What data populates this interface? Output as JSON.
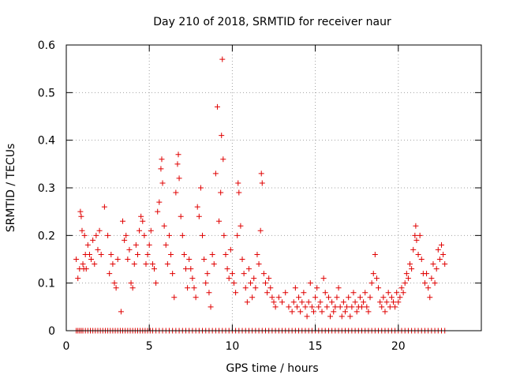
{
  "chart_data": {
    "type": "scatter",
    "title": "Day 210 of 2018, SRMTID for receiver naur",
    "xlabel": "GPS time / hours",
    "ylabel": "SRMTID / TECUs",
    "xlim": [
      0,
      25
    ],
    "ylim": [
      0,
      0.6
    ],
    "x_ticks": [
      0,
      5,
      10,
      15,
      20
    ],
    "x_tick_labels": [
      "0",
      "5",
      "10",
      "15",
      "20"
    ],
    "y_ticks": [
      0,
      0.1,
      0.2,
      0.3,
      0.4,
      0.5,
      0.6
    ],
    "y_tick_labels": [
      "0",
      "0.1",
      "0.2",
      "0.3",
      "0.4",
      "0.5",
      "0.6"
    ],
    "grid": true,
    "marker": "plus",
    "series": [
      {
        "name": "SRMTID",
        "color": "#e00000",
        "points": [
          [
            0.6,
            0.15
          ],
          [
            0.7,
            0.11
          ],
          [
            0.8,
            0.13
          ],
          [
            0.85,
            0.25
          ],
          [
            0.9,
            0.24
          ],
          [
            0.95,
            0.21
          ],
          [
            1.0,
            0.14
          ],
          [
            1.05,
            0.13
          ],
          [
            1.1,
            0.2
          ],
          [
            1.15,
            0.16
          ],
          [
            1.2,
            0.13
          ],
          [
            1.3,
            0.18
          ],
          [
            1.4,
            0.16
          ],
          [
            1.5,
            0.15
          ],
          [
            1.6,
            0.19
          ],
          [
            1.7,
            0.14
          ],
          [
            1.8,
            0.2
          ],
          [
            1.9,
            0.17
          ],
          [
            2.0,
            0.21
          ],
          [
            2.1,
            0.16
          ],
          [
            2.3,
            0.26
          ],
          [
            2.5,
            0.2
          ],
          [
            2.6,
            0.12
          ],
          [
            2.7,
            0.16
          ],
          [
            2.8,
            0.14
          ],
          [
            2.9,
            0.1
          ],
          [
            3.0,
            0.09
          ],
          [
            3.1,
            0.15
          ],
          [
            3.3,
            0.04
          ],
          [
            3.4,
            0.23
          ],
          [
            3.5,
            0.19
          ],
          [
            3.6,
            0.2
          ],
          [
            3.7,
            0.15
          ],
          [
            3.8,
            0.17
          ],
          [
            3.9,
            0.1
          ],
          [
            4.0,
            0.09
          ],
          [
            4.1,
            0.14
          ],
          [
            4.2,
            0.18
          ],
          [
            4.3,
            0.16
          ],
          [
            4.4,
            0.21
          ],
          [
            4.5,
            0.24
          ],
          [
            4.6,
            0.23
          ],
          [
            4.7,
            0.2
          ],
          [
            4.8,
            0.14
          ],
          [
            4.9,
            0.16
          ],
          [
            5.0,
            0.18
          ],
          [
            5.1,
            0.21
          ],
          [
            5.2,
            0.14
          ],
          [
            5.3,
            0.13
          ],
          [
            5.4,
            0.1
          ],
          [
            5.5,
            0.25
          ],
          [
            5.6,
            0.27
          ],
          [
            5.7,
            0.34
          ],
          [
            5.75,
            0.36
          ],
          [
            5.8,
            0.31
          ],
          [
            5.9,
            0.22
          ],
          [
            6.0,
            0.18
          ],
          [
            6.1,
            0.14
          ],
          [
            6.2,
            0.2
          ],
          [
            6.3,
            0.16
          ],
          [
            6.4,
            0.12
          ],
          [
            6.5,
            0.07
          ],
          [
            6.6,
            0.29
          ],
          [
            6.7,
            0.35
          ],
          [
            6.75,
            0.37
          ],
          [
            6.8,
            0.32
          ],
          [
            6.9,
            0.24
          ],
          [
            7.0,
            0.2
          ],
          [
            7.1,
            0.16
          ],
          [
            7.2,
            0.13
          ],
          [
            7.3,
            0.09
          ],
          [
            7.4,
            0.15
          ],
          [
            7.5,
            0.13
          ],
          [
            7.6,
            0.11
          ],
          [
            7.7,
            0.09
          ],
          [
            7.8,
            0.07
          ],
          [
            7.9,
            0.26
          ],
          [
            8.0,
            0.24
          ],
          [
            8.1,
            0.3
          ],
          [
            8.2,
            0.2
          ],
          [
            8.3,
            0.15
          ],
          [
            8.4,
            0.1
          ],
          [
            8.5,
            0.12
          ],
          [
            8.6,
            0.08
          ],
          [
            8.7,
            0.05
          ],
          [
            8.8,
            0.16
          ],
          [
            8.9,
            0.14
          ],
          [
            9.0,
            0.33
          ],
          [
            9.1,
            0.47
          ],
          [
            9.2,
            0.23
          ],
          [
            9.3,
            0.29
          ],
          [
            9.35,
            0.41
          ],
          [
            9.4,
            0.57
          ],
          [
            9.45,
            0.36
          ],
          [
            9.5,
            0.2
          ],
          [
            9.6,
            0.16
          ],
          [
            9.7,
            0.13
          ],
          [
            9.8,
            0.11
          ],
          [
            9.9,
            0.17
          ],
          [
            10.0,
            0.12
          ],
          [
            10.1,
            0.1
          ],
          [
            10.2,
            0.08
          ],
          [
            10.3,
            0.2
          ],
          [
            10.35,
            0.31
          ],
          [
            10.4,
            0.29
          ],
          [
            10.5,
            0.22
          ],
          [
            10.6,
            0.15
          ],
          [
            10.7,
            0.12
          ],
          [
            10.8,
            0.09
          ],
          [
            10.9,
            0.06
          ],
          [
            11.0,
            0.13
          ],
          [
            11.1,
            0.1
          ],
          [
            11.2,
            0.07
          ],
          [
            11.3,
            0.11
          ],
          [
            11.4,
            0.09
          ],
          [
            11.5,
            0.16
          ],
          [
            11.6,
            0.14
          ],
          [
            11.7,
            0.21
          ],
          [
            11.75,
            0.33
          ],
          [
            11.8,
            0.31
          ],
          [
            11.9,
            0.12
          ],
          [
            12.0,
            0.1
          ],
          [
            12.1,
            0.08
          ],
          [
            12.2,
            0.11
          ],
          [
            12.3,
            0.09
          ],
          [
            12.4,
            0.07
          ],
          [
            12.5,
            0.06
          ],
          [
            12.6,
            0.05
          ],
          [
            12.8,
            0.07
          ],
          [
            13.0,
            0.06
          ],
          [
            13.2,
            0.08
          ],
          [
            13.4,
            0.05
          ],
          [
            13.6,
            0.04
          ],
          [
            13.7,
            0.06
          ],
          [
            13.8,
            0.09
          ],
          [
            13.9,
            0.05
          ],
          [
            14.0,
            0.07
          ],
          [
            14.1,
            0.04
          ],
          [
            14.2,
            0.06
          ],
          [
            14.3,
            0.08
          ],
          [
            14.4,
            0.05
          ],
          [
            14.5,
            0.03
          ],
          [
            14.6,
            0.06
          ],
          [
            14.7,
            0.1
          ],
          [
            14.8,
            0.05
          ],
          [
            14.9,
            0.04
          ],
          [
            15.0,
            0.07
          ],
          [
            15.1,
            0.09
          ],
          [
            15.2,
            0.05
          ],
          [
            15.3,
            0.06
          ],
          [
            15.4,
            0.04
          ],
          [
            15.5,
            0.11
          ],
          [
            15.6,
            0.08
          ],
          [
            15.7,
            0.05
          ],
          [
            15.8,
            0.07
          ],
          [
            15.9,
            0.03
          ],
          [
            16.0,
            0.06
          ],
          [
            16.1,
            0.04
          ],
          [
            16.2,
            0.05
          ],
          [
            16.3,
            0.07
          ],
          [
            16.4,
            0.09
          ],
          [
            16.5,
            0.05
          ],
          [
            16.6,
            0.03
          ],
          [
            16.7,
            0.06
          ],
          [
            16.8,
            0.04
          ],
          [
            16.9,
            0.05
          ],
          [
            17.0,
            0.07
          ],
          [
            17.1,
            0.03
          ],
          [
            17.2,
            0.05
          ],
          [
            17.3,
            0.08
          ],
          [
            17.4,
            0.06
          ],
          [
            17.5,
            0.04
          ],
          [
            17.6,
            0.05
          ],
          [
            17.7,
            0.07
          ],
          [
            17.8,
            0.05
          ],
          [
            17.9,
            0.06
          ],
          [
            18.0,
            0.08
          ],
          [
            18.1,
            0.05
          ],
          [
            18.2,
            0.04
          ],
          [
            18.3,
            0.07
          ],
          [
            18.4,
            0.1
          ],
          [
            18.5,
            0.12
          ],
          [
            18.6,
            0.16
          ],
          [
            18.7,
            0.11
          ],
          [
            18.8,
            0.09
          ],
          [
            18.9,
            0.06
          ],
          [
            19.0,
            0.05
          ],
          [
            19.1,
            0.07
          ],
          [
            19.2,
            0.04
          ],
          [
            19.3,
            0.06
          ],
          [
            19.4,
            0.08
          ],
          [
            19.5,
            0.05
          ],
          [
            19.6,
            0.07
          ],
          [
            19.7,
            0.06
          ],
          [
            19.8,
            0.05
          ],
          [
            19.9,
            0.08
          ],
          [
            20.0,
            0.06
          ],
          [
            20.1,
            0.07
          ],
          [
            20.2,
            0.09
          ],
          [
            20.3,
            0.08
          ],
          [
            20.4,
            0.1
          ],
          [
            20.5,
            0.12
          ],
          [
            20.6,
            0.11
          ],
          [
            20.7,
            0.14
          ],
          [
            20.8,
            0.13
          ],
          [
            20.9,
            0.17
          ],
          [
            21.0,
            0.2
          ],
          [
            21.05,
            0.22
          ],
          [
            21.1,
            0.19
          ],
          [
            21.2,
            0.16
          ],
          [
            21.3,
            0.2
          ],
          [
            21.4,
            0.15
          ],
          [
            21.5,
            0.12
          ],
          [
            21.6,
            0.1
          ],
          [
            21.7,
            0.12
          ],
          [
            21.8,
            0.09
          ],
          [
            21.9,
            0.07
          ],
          [
            22.0,
            0.11
          ],
          [
            22.1,
            0.14
          ],
          [
            22.2,
            0.1
          ],
          [
            22.3,
            0.13
          ],
          [
            22.4,
            0.17
          ],
          [
            22.5,
            0.15
          ],
          [
            22.6,
            0.18
          ],
          [
            22.7,
            0.16
          ],
          [
            22.8,
            0.14
          ]
        ],
        "zero_x": [
          0.6,
          0.7,
          0.8,
          0.9,
          1.0,
          1.15,
          1.3,
          1.45,
          1.6,
          1.75,
          1.9,
          2.05,
          2.2,
          2.35,
          2.5,
          2.65,
          2.8,
          2.95,
          3.1,
          3.25,
          3.4,
          3.55,
          3.7,
          3.85,
          4.0,
          4.15,
          4.3,
          4.45,
          4.6,
          4.75,
          4.9,
          5.05,
          5.2,
          5.4,
          5.6,
          5.8,
          6.0,
          6.2,
          6.4,
          6.6,
          6.8,
          7.0,
          7.2,
          7.4,
          7.6,
          7.8,
          8.0,
          8.2,
          8.4,
          8.6,
          8.8,
          9.0,
          9.2,
          9.4,
          9.6,
          9.8,
          10.0,
          10.2,
          10.4,
          10.6,
          10.8,
          11.0,
          11.2,
          11.4,
          11.6,
          11.8,
          12.0,
          12.2,
          12.4,
          12.6,
          12.8,
          13.0,
          13.2,
          13.4,
          13.6,
          13.8,
          14.0,
          14.2,
          14.4,
          14.6,
          14.8,
          15.0,
          15.2,
          15.4,
          15.6,
          15.8,
          16.0,
          16.2,
          16.4,
          16.6,
          16.8,
          17.0,
          17.2,
          17.4,
          17.6,
          17.8,
          18.0,
          18.2,
          18.4,
          18.6,
          18.8,
          19.0,
          19.2,
          19.4,
          19.6,
          19.8,
          20.0,
          20.2,
          20.4,
          20.6,
          20.8,
          21.0,
          21.2,
          21.4,
          21.6,
          21.8,
          22.0,
          22.2,
          22.4,
          22.6,
          22.8
        ]
      }
    ]
  }
}
